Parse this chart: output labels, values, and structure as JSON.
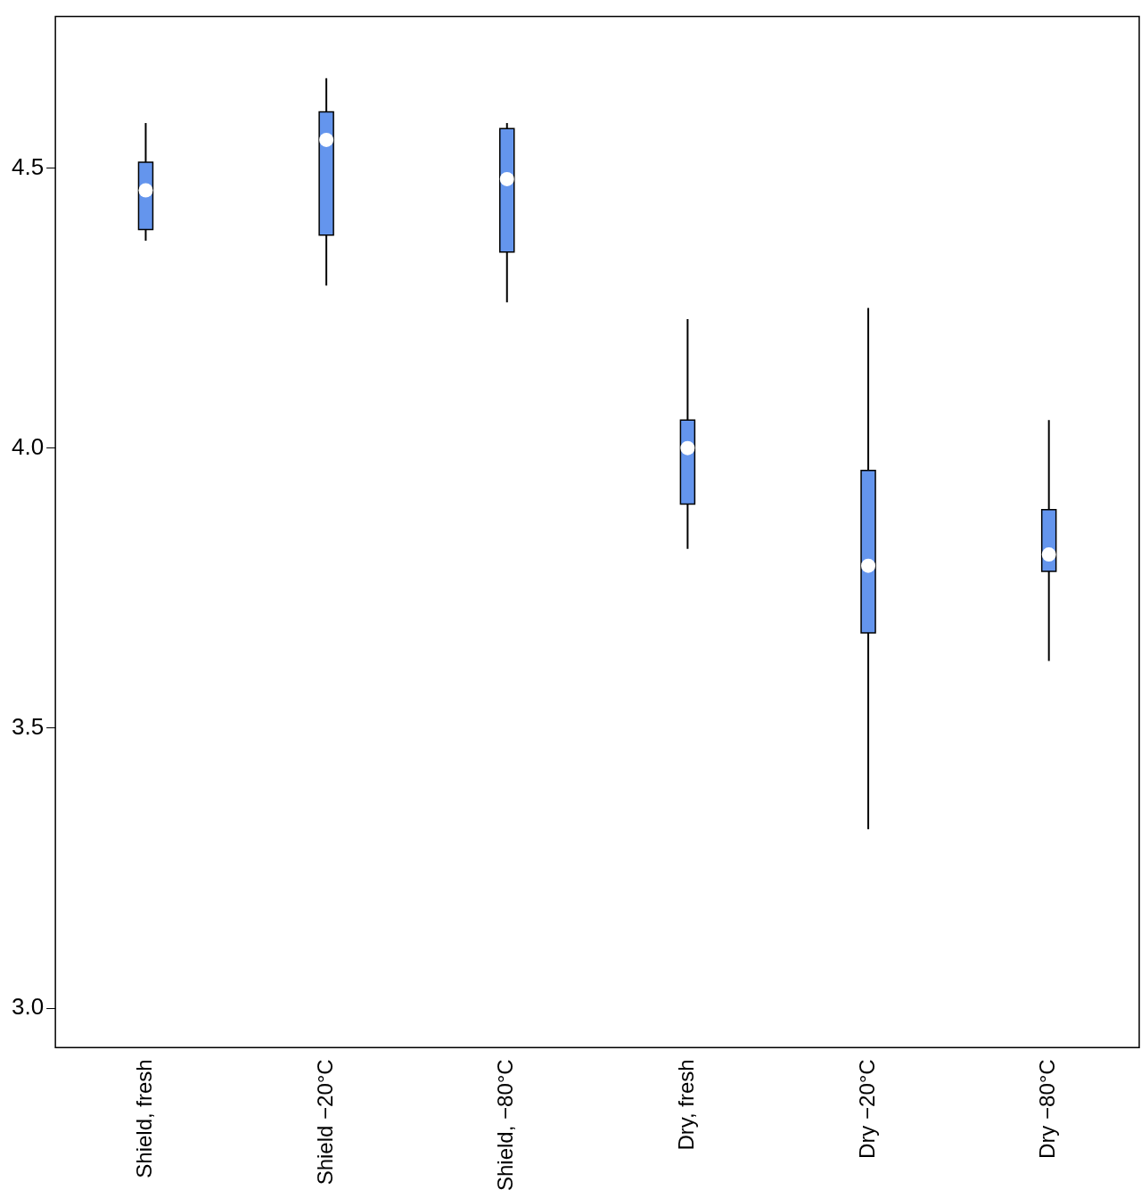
{
  "chart_data": {
    "type": "box",
    "categories": [
      "Shield, fresh",
      "Shield −20°C",
      "Shield, −80°C",
      "Dry, fresh",
      "Dry −20°C",
      "Dry −80°C"
    ],
    "series": [
      {
        "color": "#6495ed",
        "boxes": [
          {
            "low": 4.37,
            "q1": 4.39,
            "median": 4.46,
            "q3": 4.51,
            "high": 4.58
          },
          {
            "low": 4.29,
            "q1": 4.38,
            "median": 4.55,
            "q3": 4.6,
            "high": 4.66
          },
          {
            "low": 4.26,
            "q1": 4.35,
            "median": 4.48,
            "q3": 4.57,
            "high": 4.58
          },
          {
            "low": 3.82,
            "q1": 3.9,
            "median": 4.0,
            "q3": 4.05,
            "high": 4.23
          },
          {
            "low": 3.32,
            "q1": 3.67,
            "median": 3.79,
            "q3": 3.96,
            "high": 4.25
          },
          {
            "low": 3.62,
            "q1": 3.78,
            "median": 3.81,
            "q3": 3.89,
            "high": 4.05
          }
        ]
      }
    ],
    "ylim": [
      2.93,
      4.77
    ],
    "yticks": [
      {
        "value": 3,
        "label": "3.0"
      },
      {
        "value": 3.5,
        "label": "3.5"
      },
      {
        "value": 4,
        "label": "4.0"
      },
      {
        "value": 4.5,
        "label": "4.5"
      }
    ],
    "grid": false
  }
}
